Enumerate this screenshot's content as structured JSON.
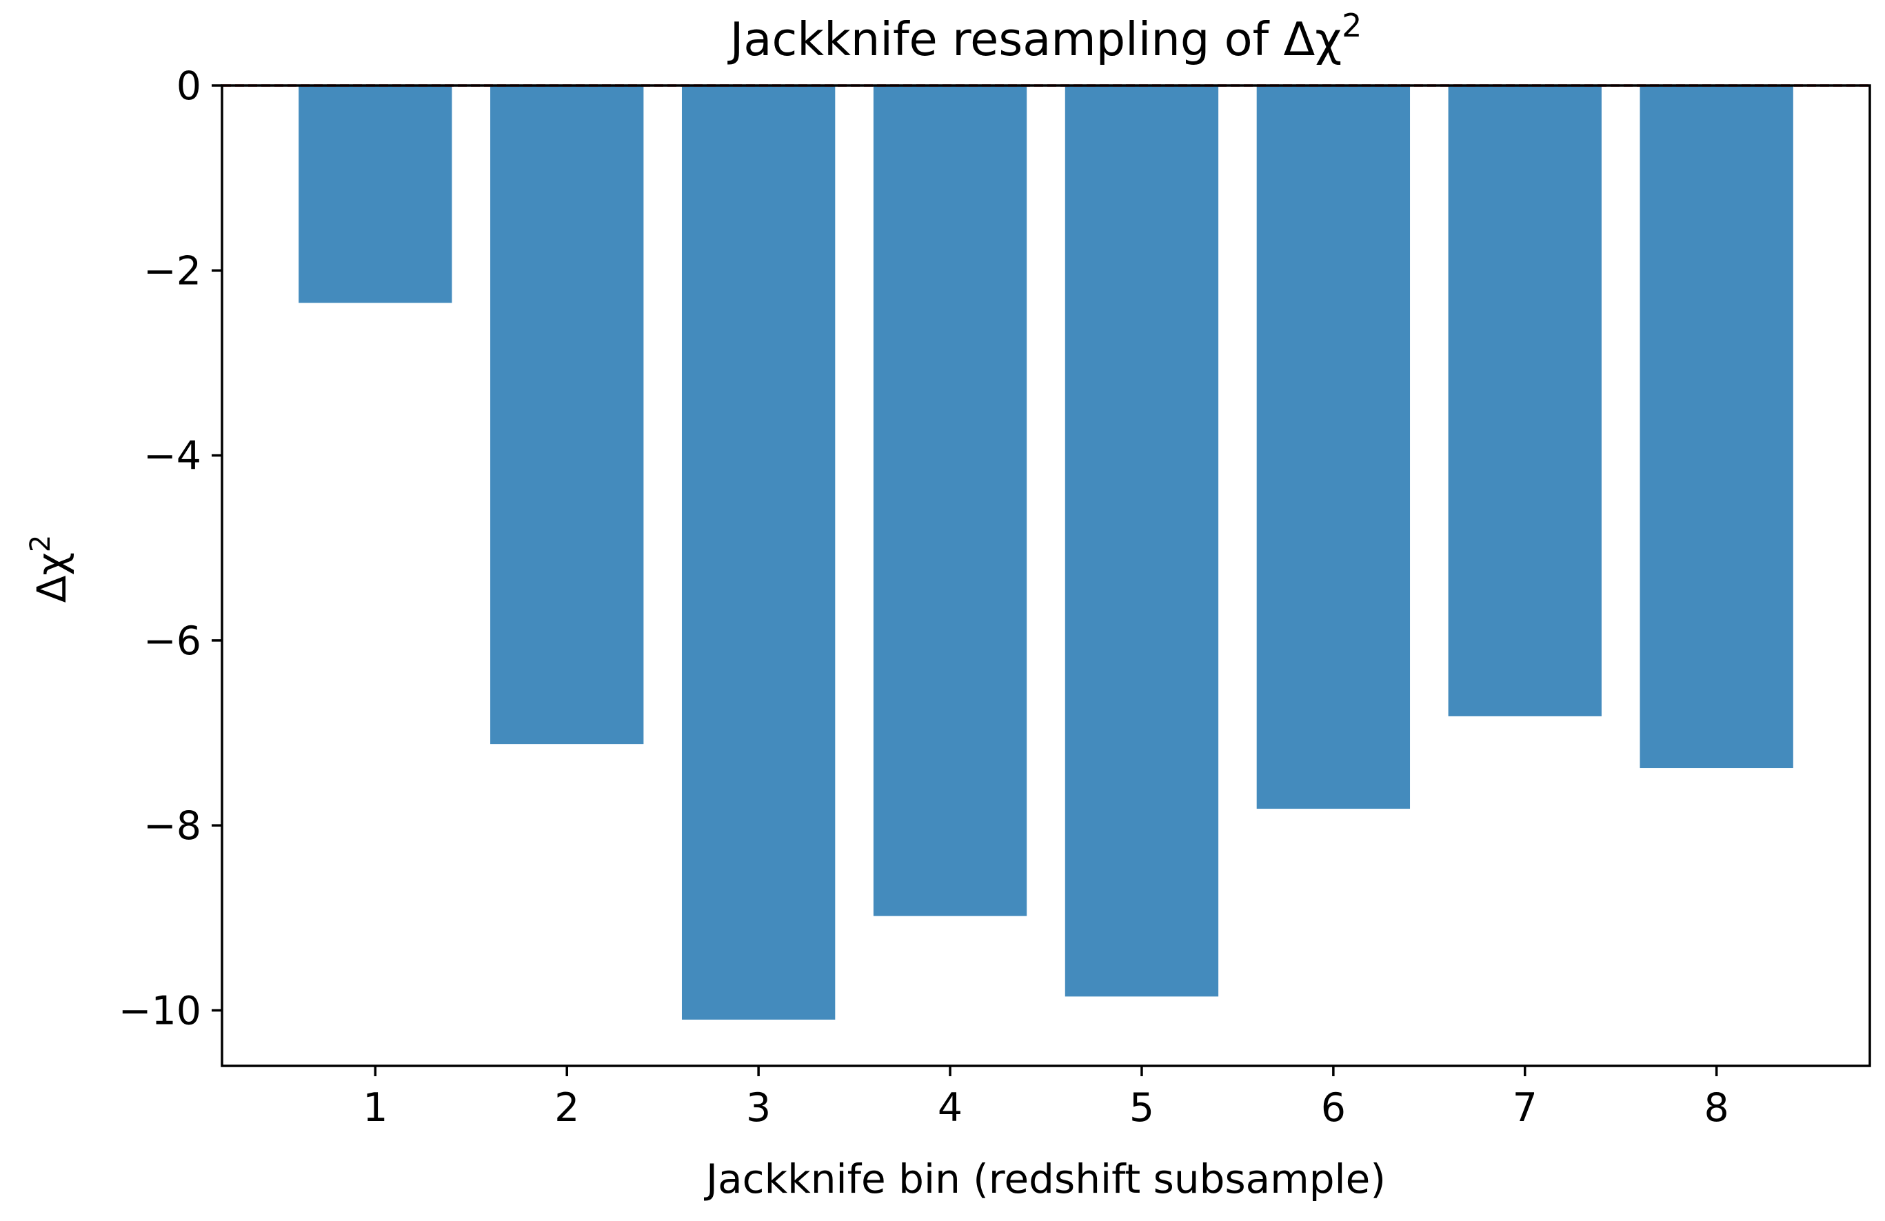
{
  "chart_data": {
    "type": "bar",
    "title": "Jackknife resampling of Δχ²",
    "title_parts": {
      "base": "Jackknife resampling of Δχ",
      "sup": "2"
    },
    "xlabel": "Jackknife bin (redshift subsample)",
    "ylabel": "Δχ²",
    "ylabel_parts": {
      "base": "Δχ",
      "sup": "2"
    },
    "categories": [
      "1",
      "2",
      "3",
      "4",
      "5",
      "6",
      "7",
      "8"
    ],
    "values": [
      -2.35,
      -7.12,
      -10.1,
      -8.98,
      -9.85,
      -7.82,
      -6.82,
      -7.38
    ],
    "xlim": [
      0.2,
      8.8
    ],
    "ylim": [
      -10.6,
      0
    ],
    "yticks": [
      0,
      -2,
      -4,
      -6,
      -8,
      -10
    ],
    "ytick_labels": [
      "0",
      "−2",
      "−4",
      "−6",
      "−8",
      "−10"
    ],
    "reference_line": {
      "y": 0,
      "style": "dashed",
      "color": "#d62728"
    },
    "bar_color": "#448bbd",
    "grid": false,
    "legend": "none"
  }
}
